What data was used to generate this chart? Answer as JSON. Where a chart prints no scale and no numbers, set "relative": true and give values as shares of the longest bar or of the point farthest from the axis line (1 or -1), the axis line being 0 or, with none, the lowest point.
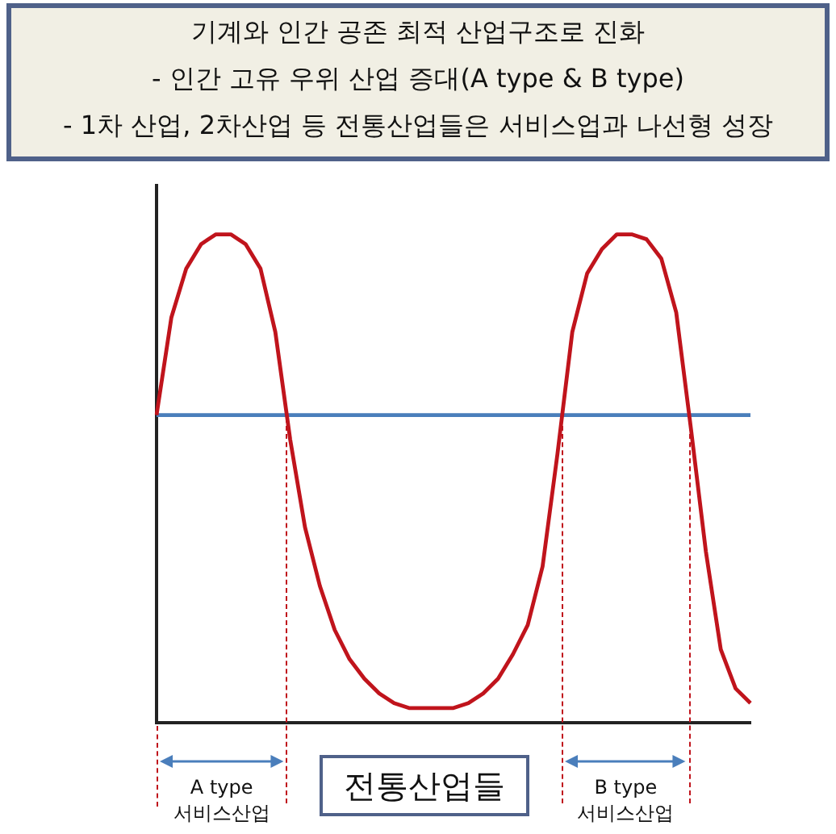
{
  "chart_data": {
    "type": "line",
    "title": "기계와 인간 공존 최적 산업구조로 진화",
    "subtitle": "- 인간 고유 우위 산업 증대(A type & B type)\n- 1차 산업, 2차산업 등 전통산업들은 서비스업과 나선형 성장",
    "relative": true,
    "legend": false,
    "marker": "none",
    "line_style": "solid",
    "categories": [
      null,
      null,
      null,
      null,
      null,
      null,
      null,
      null,
      null,
      null,
      null,
      null,
      null,
      null,
      null,
      null,
      null,
      null,
      null,
      null,
      null,
      null,
      null,
      null,
      null,
      null,
      null,
      null,
      null,
      null,
      null,
      null,
      null,
      null,
      null,
      null,
      null,
      null,
      null,
      null,
      null
    ],
    "series": [
      {
        "color": "#c0141c",
        "values": [
          0.63,
          0.83,
          0.93,
          0.98,
          1,
          1,
          0.98,
          0.93,
          0.8,
          0.58,
          0.4,
          0.28,
          0.19,
          0.13,
          0.09,
          0.06,
          0.04,
          0.03,
          0.03,
          0.03,
          0.03,
          0.04,
          0.06,
          0.09,
          0.14,
          0.2,
          0.32,
          0.55,
          0.8,
          0.92,
          0.97,
          1,
          1,
          0.99,
          0.95,
          0.84,
          0.6,
          0.35,
          0.15,
          0.07,
          0.04
        ]
      },
      {
        "color": "#4a7ebb",
        "values": [
          0.63,
          0.63,
          0.63,
          0.63,
          0.63,
          0.63,
          0.63,
          0.63,
          0.63,
          0.63,
          0.63,
          0.63,
          0.63,
          0.63,
          0.63,
          0.63,
          0.63,
          0.63,
          0.63,
          0.63,
          0.63,
          0.63,
          0.63,
          0.63,
          0.63,
          0.63,
          0.63,
          0.63,
          0.63,
          0.63,
          0.63,
          0.63,
          0.63,
          0.63,
          0.63,
          0.63,
          0.63,
          0.63,
          0.63,
          0.63,
          0.63
        ]
      }
    ],
    "annotations": [
      "A type\n서비스산업",
      "전통산업들",
      "B type\n서비스산업"
    ]
  }
}
